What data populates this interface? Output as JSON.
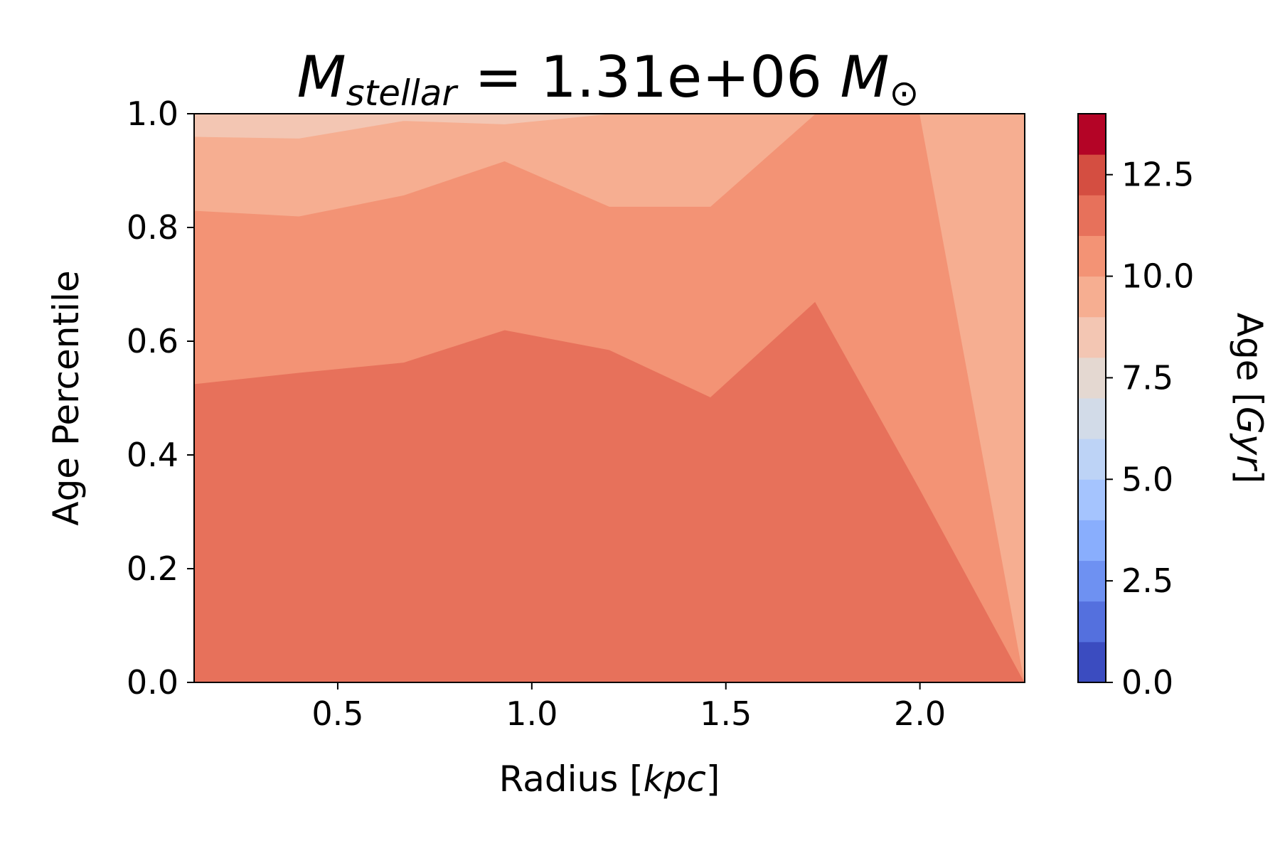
{
  "chart_data": {
    "type": "area",
    "title": {
      "main": "M",
      "sub": "stellar",
      "eq": " = 1.31e+06 ",
      "unit": "M",
      "unit_sub": "⊙"
    },
    "xlabel": {
      "text": "Radius [",
      "unit": "kpc",
      "close": "]"
    },
    "ylabel": "Age Percentile",
    "xlim": [
      0.13,
      2.27
    ],
    "ylim": [
      0.0,
      1.0
    ],
    "xticks": [
      "0.5",
      "1.0",
      "1.5",
      "2.0"
    ],
    "yticks": [
      "0.0",
      "0.2",
      "0.4",
      "0.6",
      "0.8",
      "1.0"
    ],
    "series": [
      {
        "age_gyr": 11.0,
        "color": "#e7715b",
        "x": [
          0.13,
          0.4,
          0.67,
          0.93,
          1.2,
          1.46,
          1.73,
          2.0,
          2.27
        ],
        "upper": [
          0.525,
          0.545,
          0.563,
          0.62,
          0.585,
          0.502,
          0.67,
          0.34,
          0.0
        ]
      },
      {
        "age_gyr": 10.0,
        "color": "#f39375",
        "x": [
          0.13,
          0.4,
          0.67,
          0.93,
          1.2,
          1.46,
          1.73,
          2.0,
          2.27
        ],
        "upper": [
          0.83,
          0.82,
          0.857,
          0.917,
          0.837,
          0.837,
          1.0,
          1.0,
          0.0
        ]
      },
      {
        "age_gyr": 9.0,
        "color": "#f6ae91",
        "x": [
          0.13,
          0.4,
          0.67,
          0.93,
          1.2,
          1.46,
          1.73,
          2.0,
          2.27
        ],
        "upper": [
          0.96,
          0.957,
          0.988,
          0.982,
          1.0,
          1.0,
          1.0,
          1.0,
          1.0
        ]
      },
      {
        "age_gyr": 8.0,
        "color": "#f3c6b3",
        "x": [
          0.13,
          0.4,
          0.67,
          0.93,
          1.2,
          1.46,
          1.73,
          2.0,
          2.27
        ],
        "upper": [
          1.0,
          1.0,
          1.0,
          1.0,
          1.0,
          1.0,
          1.0,
          1.0,
          1.0
        ]
      }
    ],
    "colorbar": {
      "label_prefix": "Age [",
      "label_unit": "Gyr",
      "label_suffix": "]",
      "range": [
        0.0,
        14.0
      ],
      "ticks": [
        "0.0",
        "2.5",
        "5.0",
        "7.5",
        "10.0",
        "12.5"
      ],
      "levels": [
        "#3b4cc0",
        "#5470de",
        "#6e91f2",
        "#89aefd",
        "#a5c4fe",
        "#bdd3f6",
        "#d2dbe8",
        "#e4d8d1",
        "#f3c6b3",
        "#f6ae91",
        "#f39375",
        "#e7715b",
        "#d44e41",
        "#b40426"
      ]
    }
  }
}
